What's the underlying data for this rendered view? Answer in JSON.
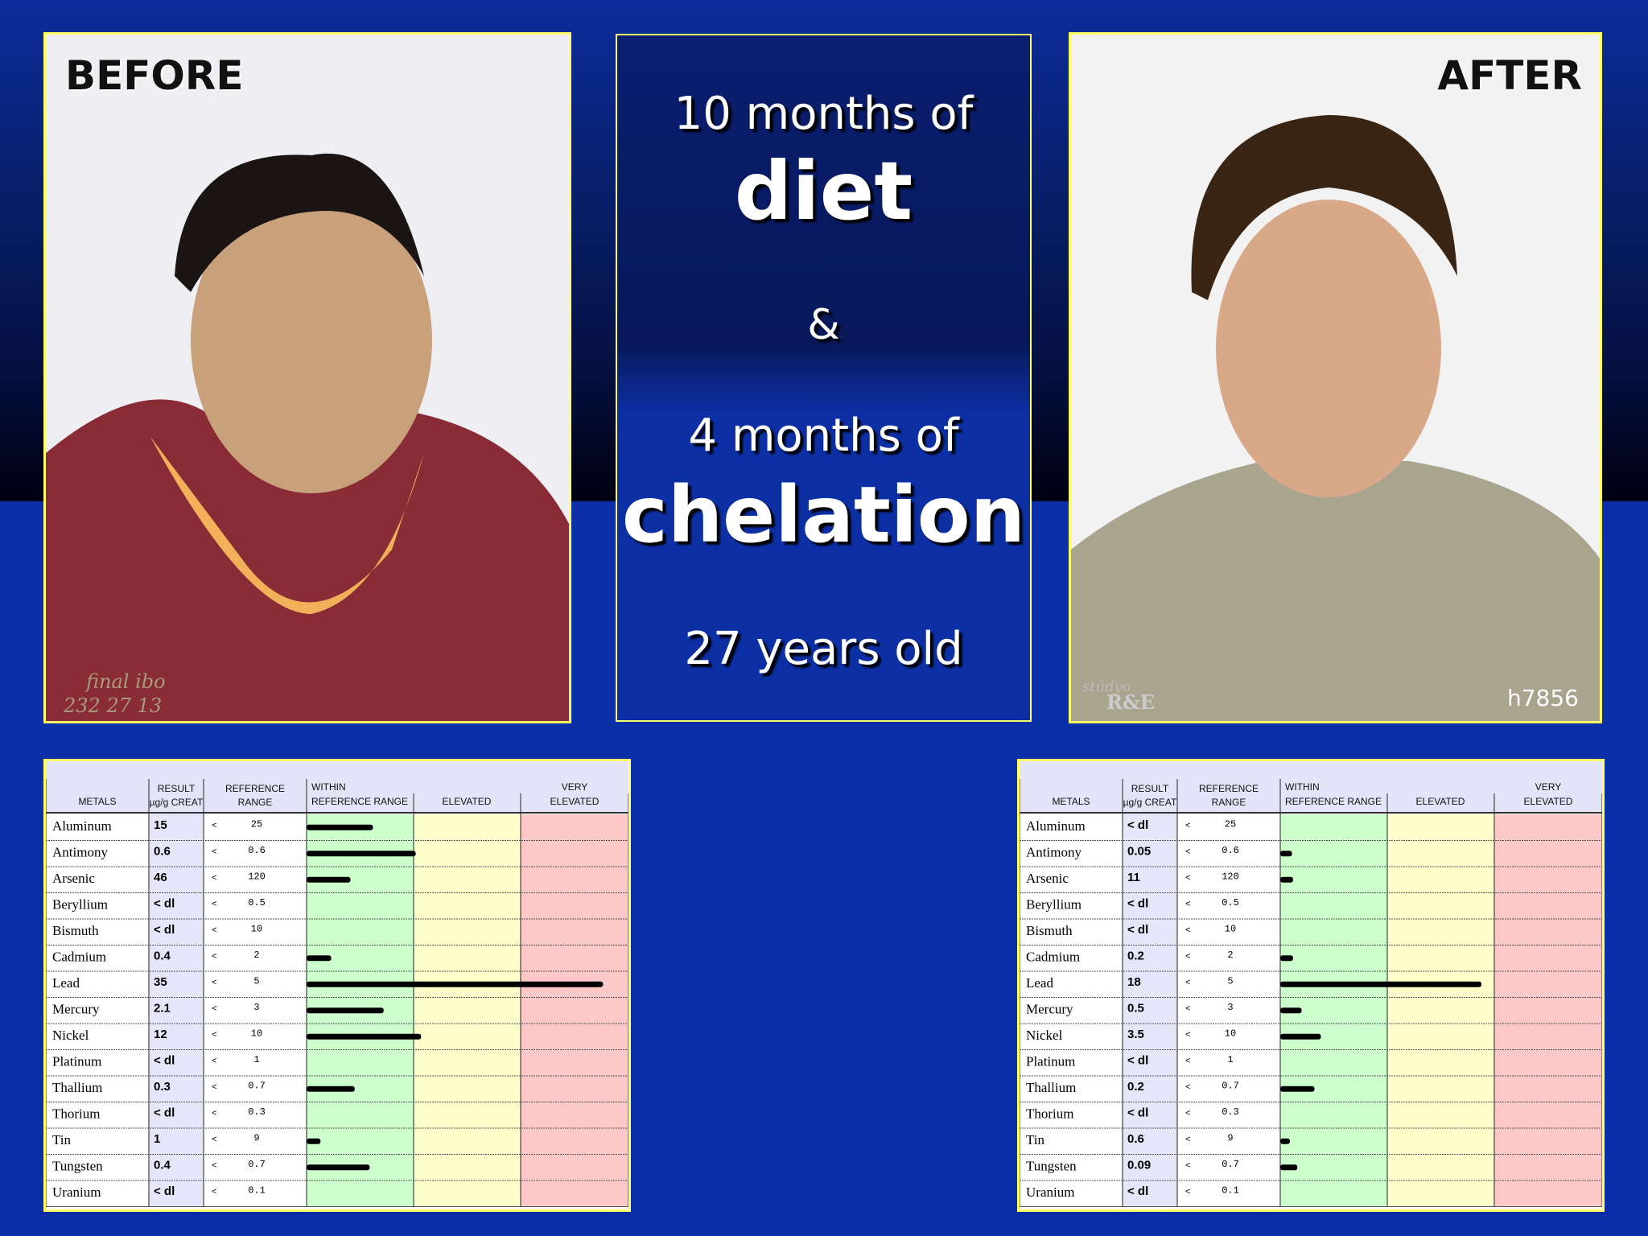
{
  "before_photo": {
    "label": "BEFORE",
    "watermark": [
      "final ibo",
      "232 27 13"
    ]
  },
  "center": {
    "lines": [
      "10 months of",
      "diet",
      "&",
      "4 months of",
      "chelation",
      "27 years old"
    ]
  },
  "after_photo": {
    "label": "AFTER",
    "watermark": [
      "stüdyo",
      "R&E"
    ],
    "code": "h7856"
  },
  "tables": [
    {
      "header": {
        "metals": "METALS",
        "result": [
          "RESULT",
          "µg/g CREAT"
        ],
        "reference": [
          "REFERENCE",
          "RANGE"
        ],
        "within": [
          "WITHIN",
          "REFERENCE RANGE"
        ],
        "elevated": "ELEVATED",
        "very_elevated": [
          "VERY",
          "ELEVATED"
        ]
      },
      "ref_prefix": "<",
      "rows": [
        {
          "metal": "Aluminum",
          "result": "15",
          "ref": "25",
          "bar": 0.62
        },
        {
          "metal": "Antimony",
          "result": "0.6",
          "ref": "0.6",
          "bar": 1.02
        },
        {
          "metal": "Arsenic",
          "result": "46",
          "ref": "120",
          "bar": 0.41
        },
        {
          "metal": "Beryllium",
          "result": "< dl",
          "ref": "0.5",
          "bar": null
        },
        {
          "metal": "Bismuth",
          "result": "< dl",
          "ref": "10",
          "bar": null
        },
        {
          "metal": "Cadmium",
          "result": "0.4",
          "ref": "2",
          "bar": 0.23
        },
        {
          "metal": "Lead",
          "result": "35",
          "ref": "5",
          "bar": 2.77
        },
        {
          "metal": "Mercury",
          "result": "2.1",
          "ref": "3",
          "bar": 0.72
        },
        {
          "metal": "Nickel",
          "result": "12",
          "ref": "10",
          "bar": 1.07
        },
        {
          "metal": "Platinum",
          "result": "< dl",
          "ref": "1",
          "bar": null
        },
        {
          "metal": "Thallium",
          "result": "0.3",
          "ref": "0.7",
          "bar": 0.45
        },
        {
          "metal": "Thorium",
          "result": "< dl",
          "ref": "0.3",
          "bar": null
        },
        {
          "metal": "Tin",
          "result": "1",
          "ref": "9",
          "bar": 0.13
        },
        {
          "metal": "Tungsten",
          "result": "0.4",
          "ref": "0.7",
          "bar": 0.59
        },
        {
          "metal": "Uranium",
          "result": "< dl",
          "ref": "0.1",
          "bar": null
        }
      ]
    },
    {
      "header": {
        "metals": "METALS",
        "result": [
          "RESULT",
          "µg/g CREAT"
        ],
        "reference": [
          "REFERENCE",
          "RANGE"
        ],
        "within": [
          "WITHIN",
          "REFERENCE RANGE"
        ],
        "elevated": "ELEVATED",
        "very_elevated": [
          "VERY",
          "ELEVATED"
        ]
      },
      "ref_prefix": "<",
      "rows": [
        {
          "metal": "Aluminum",
          "result": "< dl",
          "ref": "25",
          "bar": null
        },
        {
          "metal": "Antimony",
          "result": "0.05",
          "ref": "0.6",
          "bar": 0.11
        },
        {
          "metal": "Arsenic",
          "result": "11",
          "ref": "120",
          "bar": 0.12
        },
        {
          "metal": "Beryllium",
          "result": "< dl",
          "ref": "0.5",
          "bar": null
        },
        {
          "metal": "Bismuth",
          "result": "< dl",
          "ref": "10",
          "bar": null
        },
        {
          "metal": "Cadmium",
          "result": "0.2",
          "ref": "2",
          "bar": 0.12
        },
        {
          "metal": "Lead",
          "result": "18",
          "ref": "5",
          "bar": 1.88
        },
        {
          "metal": "Mercury",
          "result": "0.5",
          "ref": "3",
          "bar": 0.2
        },
        {
          "metal": "Nickel",
          "result": "3.5",
          "ref": "10",
          "bar": 0.38
        },
        {
          "metal": "Platinum",
          "result": "< dl",
          "ref": "1",
          "bar": null
        },
        {
          "metal": "Thallium",
          "result": "0.2",
          "ref": "0.7",
          "bar": 0.32
        },
        {
          "metal": "Thorium",
          "result": "< dl",
          "ref": "0.3",
          "bar": null
        },
        {
          "metal": "Tin",
          "result": "0.6",
          "ref": "9",
          "bar": 0.09
        },
        {
          "metal": "Tungsten",
          "result": "0.09",
          "ref": "0.7",
          "bar": 0.16
        },
        {
          "metal": "Uranium",
          "result": "< dl",
          "ref": "0.1",
          "bar": null
        }
      ]
    }
  ]
}
